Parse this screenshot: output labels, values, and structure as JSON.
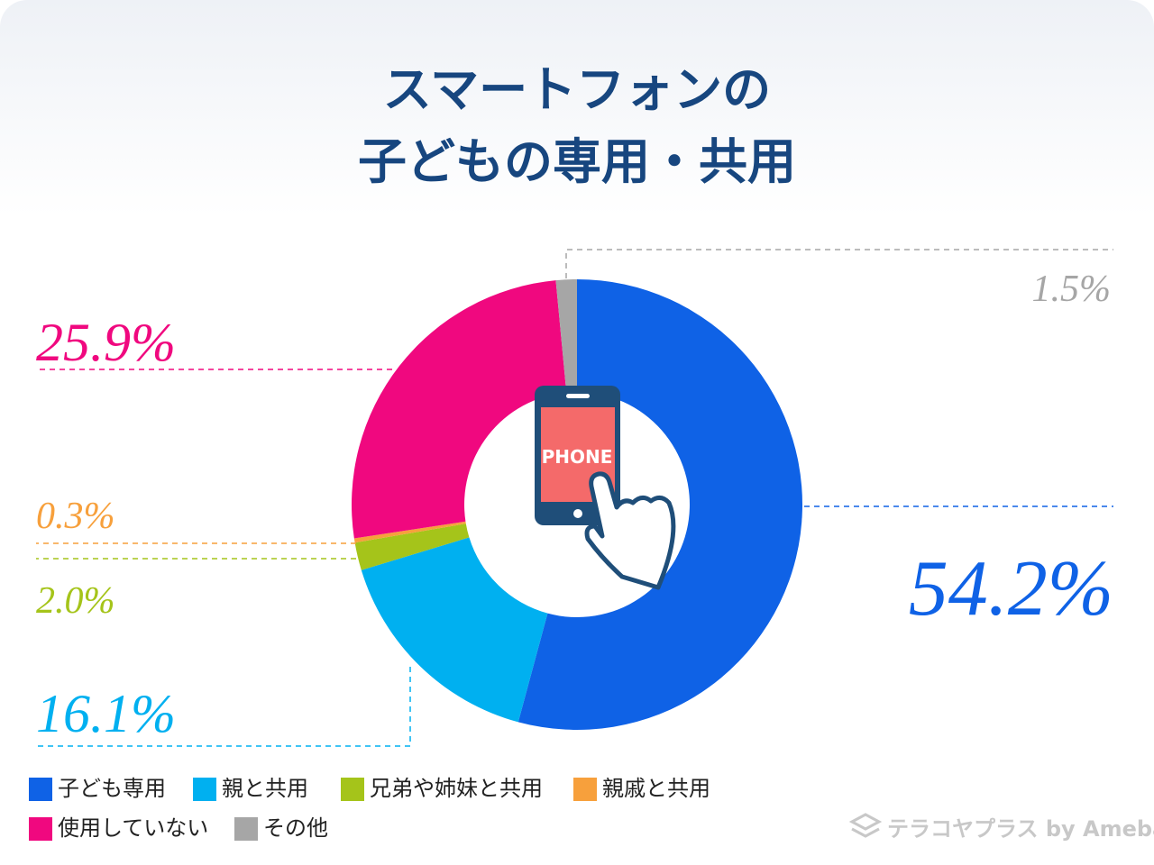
{
  "chart_data": {
    "type": "donut",
    "title": [
      "スマートフォンの",
      "子どもの専用・共用"
    ],
    "categories": [
      "子ども専用",
      "親と共用",
      "兄弟や姉妹と共用",
      "親戚と共用",
      "使用していない",
      "その他"
    ],
    "values": [
      54.2,
      16.1,
      2.0,
      0.3,
      25.9,
      1.5
    ],
    "value_labels": [
      "54.2%",
      "16.1%",
      "2.0%",
      "0.3%",
      "25.9%",
      "1.5%"
    ],
    "colors": [
      "#0f62e6",
      "#00b0f0",
      "#a5c41a",
      "#f7a03c",
      "#f0087f",
      "#a6a6a6"
    ],
    "icon_text": "PHONE",
    "source": "テラコヤプラス by Ameba"
  }
}
